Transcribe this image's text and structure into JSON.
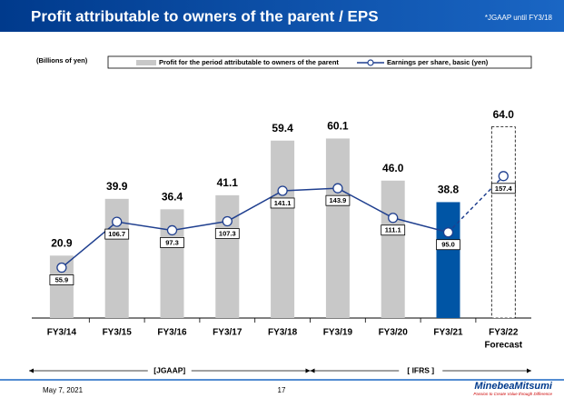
{
  "chart_data": {
    "type": "bar_line",
    "title": "Profit attributable to owners of the parent / EPS",
    "note": "*JGAAP until FY3/18",
    "unit_label": "(Billions of yen)",
    "categories": [
      "FY3/14",
      "FY3/15",
      "FY3/16",
      "FY3/17",
      "FY3/18",
      "FY3/19",
      "FY3/20",
      "FY3/21",
      "FY3/22"
    ],
    "forecast_label": "Forecast",
    "forecast": [
      false,
      false,
      false,
      false,
      false,
      false,
      false,
      false,
      true
    ],
    "series": [
      {
        "name": "Profit for the period attributable to owners of the parent",
        "type": "bar",
        "color": "#c8c8c8",
        "colors": [
          "#c8c8c8",
          "#c8c8c8",
          "#c8c8c8",
          "#c8c8c8",
          "#c8c8c8",
          "#c8c8c8",
          "#c8c8c8",
          "#0055a5",
          "#ffffff"
        ],
        "values": [
          20.9,
          39.9,
          36.4,
          41.1,
          59.4,
          60.1,
          46.0,
          38.8,
          64.0
        ],
        "value_labels": [
          "20.9",
          "39.9",
          "36.4",
          "41.1",
          "59.4",
          "60.1",
          "46.0",
          "38.8",
          "64.0"
        ]
      },
      {
        "name": "Earnings per share, basic (yen)",
        "type": "line",
        "axis": "y2",
        "color": "#1f3f8f",
        "values": [
          55.9,
          106.7,
          97.3,
          107.3,
          141.1,
          143.9,
          111.1,
          95.0,
          157.4
        ],
        "value_labels": [
          "55.9",
          "106.7",
          "97.3",
          "107.3",
          "141.1",
          "143.9",
          "111.1",
          "95.0",
          "157.4"
        ]
      }
    ],
    "ylim": [
      0,
      80
    ],
    "y2lim": [
      0,
      265
    ],
    "periods": [
      {
        "label": "[JGAAP]",
        "from": 0,
        "to": 4
      },
      {
        "label": "[ IFRS ]",
        "from": 5,
        "to": 8
      }
    ]
  },
  "footer": {
    "date": "May 7, 2021",
    "page": "17",
    "logo": "MinebeaMitsumi",
    "tagline": "Passion to Create Value through Difference"
  }
}
